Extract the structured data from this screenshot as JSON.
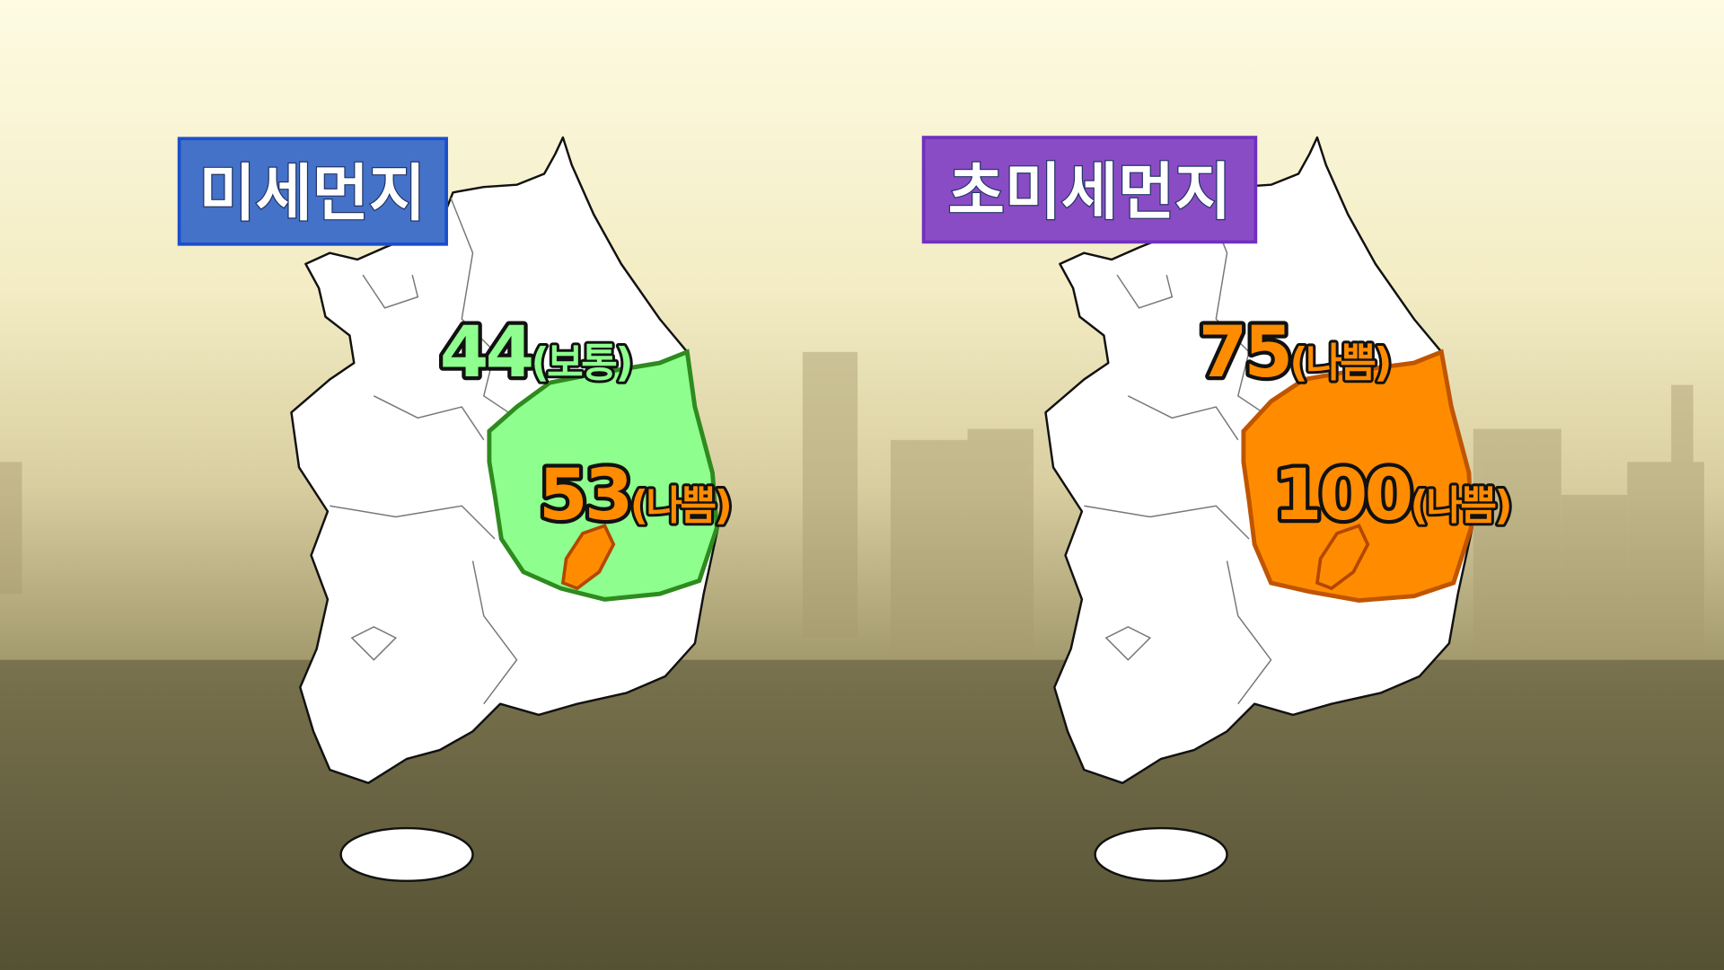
{
  "panels": [
    {
      "title": "미세먼지",
      "title_bg": "#4472c8",
      "title_border": "#1a4fcc",
      "labels": [
        {
          "value": "44",
          "grade": "(보통)",
          "color": "#8eff8e"
        },
        {
          "value": "53",
          "grade": "(나쁨)",
          "color": "#ff8c00"
        }
      ],
      "region_fill": "#8eff8e",
      "region_stroke": "#2e8b1e",
      "subregion_fill": "#ff8c00"
    },
    {
      "title": "초미세먼지",
      "title_bg": "#8a4cc4",
      "title_border": "#7030c0",
      "labels": [
        {
          "value": "75",
          "grade": "(나쁨)",
          "color": "#ff8c00"
        },
        {
          "value": "100",
          "grade": "(나쁨)",
          "color": "#ff8c00"
        }
      ],
      "region_fill": "#ff8c00",
      "region_stroke": "#c05500",
      "subregion_fill": "#ff8c00"
    }
  ]
}
